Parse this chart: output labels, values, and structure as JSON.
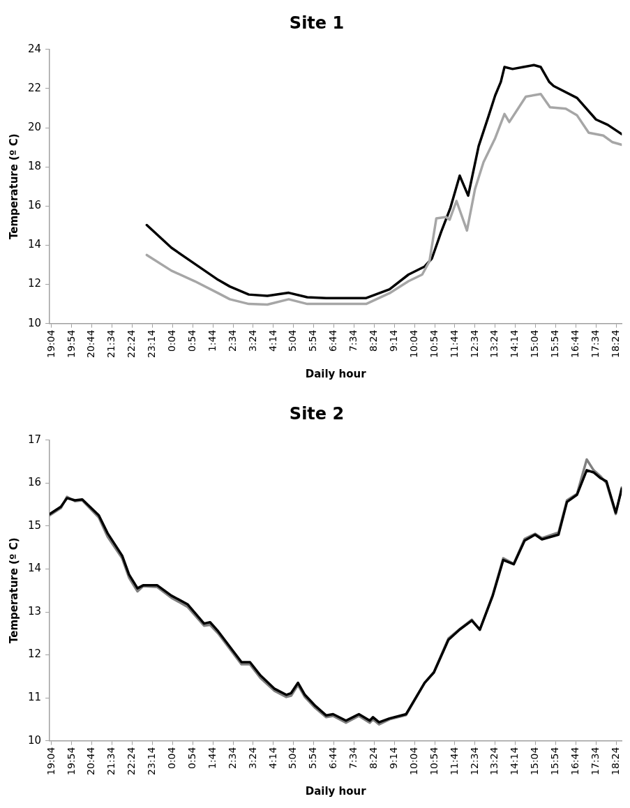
{
  "chart_data": [
    {
      "type": "line",
      "title": "Site 1",
      "xlabel": "Daily hour",
      "ylabel": "Temperature (º C)",
      "xlim": [
        "--01-01T18:59",
        "--01-02T18:38"
      ],
      "ylim": [
        10,
        24
      ],
      "yticks": [
        10,
        12,
        14,
        16,
        18,
        20,
        22,
        24
      ],
      "xticks": [
        {
          "value": "--01-01T19:04",
          "label": "19:04"
        },
        {
          "value": "--01-01T19:54",
          "label": "19:54"
        },
        {
          "value": "--01-01T20:44",
          "label": "20:44"
        },
        {
          "value": "--01-01T21:34",
          "label": "21:34"
        },
        {
          "value": "--01-01T22:24",
          "label": "22:24"
        },
        {
          "value": "--01-01T23:14",
          "label": "23:14"
        },
        {
          "value": "--01-02T00:04",
          "label": "0:04"
        },
        {
          "value": "--01-02T00:54",
          "label": "0:54"
        },
        {
          "value": "--01-02T01:44",
          "label": "1:44"
        },
        {
          "value": "--01-02T02:34",
          "label": "2:34"
        },
        {
          "value": "--01-02T03:24",
          "label": "3:24"
        },
        {
          "value": "--01-02T04:14",
          "label": "4:14"
        },
        {
          "value": "--01-02T05:04",
          "label": "5:04"
        },
        {
          "value": "--01-02T05:54",
          "label": "5:54"
        },
        {
          "value": "--01-02T06:44",
          "label": "6:44"
        },
        {
          "value": "--01-02T07:34",
          "label": "7:34"
        },
        {
          "value": "--01-02T08:24",
          "label": "8:24"
        },
        {
          "value": "--01-02T09:14",
          "label": "9:14"
        },
        {
          "value": "--01-02T10:04",
          "label": "10:04"
        },
        {
          "value": "--01-02T10:54",
          "label": "10:54"
        },
        {
          "value": "--01-02T11:44",
          "label": "11:44"
        },
        {
          "value": "--01-02T12:34",
          "label": "12:34"
        },
        {
          "value": "--01-02T13:24",
          "label": "13:24"
        },
        {
          "value": "--01-02T14:14",
          "label": "14:14"
        },
        {
          "value": "--01-02T15:04",
          "label": "15:04"
        },
        {
          "value": "--01-02T15:54",
          "label": "15:54"
        },
        {
          "value": "--01-02T16:44",
          "label": "16:44"
        },
        {
          "value": "--01-02T17:34",
          "label": "17:34"
        },
        {
          "value": "--01-02T18:24",
          "label": "18:24"
        }
      ],
      "grid": false,
      "legend": false,
      "marker": "none",
      "line_style": "solid",
      "series": [
        {
          "color": "#a6a6a6",
          "x": [
            "--01-01T23:00",
            "--01-02T00:01",
            "--01-02T00:59",
            "--01-02T01:57",
            "--01-02T02:26",
            "--01-02T03:13",
            "--01-02T03:59",
            "--01-02T04:52",
            "--01-02T05:38",
            "--01-02T06:25",
            "--01-02T08:04",
            "--01-02T09:02",
            "--01-02T09:49",
            "--01-02T10:23",
            "--01-02T10:41",
            "--01-02T10:58",
            "--01-02T11:22",
            "--01-02T11:31",
            "--01-02T11:48",
            "--01-02T12:14",
            "--01-02T12:34",
            "--01-02T12:55",
            "--01-02T13:24",
            "--01-02T13:47",
            "--01-02T13:59",
            "--01-02T14:40",
            "--01-02T15:17",
            "--01-02T15:40",
            "--01-02T16:19",
            "--01-02T16:47",
            "--01-02T17:16",
            "--01-02T17:52",
            "--01-02T18:15",
            "--01-02T18:38"
          ],
          "values": [
            13.5,
            12.7,
            12.16,
            11.55,
            11.24,
            11.0,
            10.97,
            11.24,
            11.0,
            11.0,
            11.0,
            11.55,
            12.16,
            12.5,
            13.18,
            15.37,
            15.44,
            15.3,
            16.26,
            14.75,
            16.87,
            18.24,
            19.47,
            20.7,
            20.29,
            21.59,
            21.72,
            21.04,
            20.97,
            20.63,
            19.74,
            19.6,
            19.26,
            19.13
          ]
        },
        {
          "color": "#000000",
          "x": [
            "--01-01T23:00",
            "--01-02T00:01",
            "--01-02T00:59",
            "--01-02T01:57",
            "--01-02T02:26",
            "--01-02T03:13",
            "--01-02T03:59",
            "--01-02T04:52",
            "--01-02T05:38",
            "--01-02T06:25",
            "--01-02T08:04",
            "--01-02T09:02",
            "--01-02T09:49",
            "--01-02T10:29",
            "--01-02T10:47",
            "--01-02T11:10",
            "--01-02T11:33",
            "--01-02T11:56",
            "--01-02T12:17",
            "--01-02T12:43",
            "--01-02T13:07",
            "--01-02T13:24",
            "--01-02T13:38",
            "--01-02T13:47",
            "--01-02T14:07",
            "--01-02T14:34",
            "--01-02T15:00",
            "--01-02T15:17",
            "--01-02T15:38",
            "--01-02T15:49",
            "--01-02T16:47",
            "--01-02T17:34",
            "--01-02T18:03",
            "--01-02T18:38"
          ],
          "values": [
            15.03,
            13.87,
            13.05,
            12.23,
            11.89,
            11.48,
            11.41,
            11.57,
            11.34,
            11.3,
            11.3,
            11.75,
            12.5,
            12.91,
            13.32,
            14.68,
            15.91,
            17.55,
            16.53,
            19.06,
            20.56,
            21.65,
            22.34,
            23.1,
            23.0,
            23.1,
            23.2,
            23.1,
            22.34,
            22.13,
            21.52,
            20.42,
            20.15,
            19.67
          ]
        }
      ]
    },
    {
      "type": "line",
      "title": "Site 2",
      "xlabel": "Daily hour",
      "ylabel": "Temperature (º C)",
      "xlim": [
        "--01-01T18:59",
        "--01-02T18:38"
      ],
      "ylim": [
        10,
        17
      ],
      "yticks": [
        10,
        11,
        12,
        13,
        14,
        15,
        16,
        17
      ],
      "xticks": [
        {
          "value": "--01-01T19:04",
          "label": "19:04"
        },
        {
          "value": "--01-01T19:54",
          "label": "19:54"
        },
        {
          "value": "--01-01T20:44",
          "label": "20:44"
        },
        {
          "value": "--01-01T21:34",
          "label": "21:34"
        },
        {
          "value": "--01-01T22:24",
          "label": "22:24"
        },
        {
          "value": "--01-01T23:14",
          "label": "23:14"
        },
        {
          "value": "--01-02T00:04",
          "label": "0:04"
        },
        {
          "value": "--01-02T00:54",
          "label": "0:54"
        },
        {
          "value": "--01-02T01:44",
          "label": "1:44"
        },
        {
          "value": "--01-02T02:34",
          "label": "2:34"
        },
        {
          "value": "--01-02T03:24",
          "label": "3:24"
        },
        {
          "value": "--01-02T04:14",
          "label": "4:14"
        },
        {
          "value": "--01-02T05:04",
          "label": "5:04"
        },
        {
          "value": "--01-02T05:54",
          "label": "5:54"
        },
        {
          "value": "--01-02T06:44",
          "label": "6:44"
        },
        {
          "value": "--01-02T07:34",
          "label": "7:34"
        },
        {
          "value": "--01-02T08:24",
          "label": "8:24"
        },
        {
          "value": "--01-02T09:14",
          "label": "9:14"
        },
        {
          "value": "--01-02T10:04",
          "label": "10:04"
        },
        {
          "value": "--01-02T10:54",
          "label": "10:54"
        },
        {
          "value": "--01-02T11:44",
          "label": "11:44"
        },
        {
          "value": "--01-02T12:34",
          "label": "12:34"
        },
        {
          "value": "--01-02T13:24",
          "label": "13:24"
        },
        {
          "value": "--01-02T14:14",
          "label": "14:14"
        },
        {
          "value": "--01-02T15:04",
          "label": "15:04"
        },
        {
          "value": "--01-02T15:54",
          "label": "15:54"
        },
        {
          "value": "--01-02T16:44",
          "label": "16:44"
        },
        {
          "value": "--01-02T17:34",
          "label": "17:34"
        },
        {
          "value": "--01-02T18:24",
          "label": "18:24"
        }
      ],
      "grid": false,
      "legend": false,
      "marker": "none",
      "line_style": "solid",
      "x": [
        "--01-01T18:59",
        "--01-01T19:27",
        "--01-01T19:42",
        "--01-01T20:02",
        "--01-01T20:20",
        "--01-01T21:01",
        "--01-01T21:23",
        "--01-01T21:59",
        "--01-01T22:16",
        "--01-01T22:37",
        "--01-01T22:51",
        "--01-01T23:26",
        "--01-02T00:01",
        "--01-02T00:41",
        "--01-02T01:22",
        "--01-02T01:37",
        "--01-02T01:57",
        "--01-02T02:55",
        "--01-02T03:16",
        "--01-02T03:42",
        "--01-02T04:17",
        "--01-02T04:46",
        "--01-02T04:58",
        "--01-02T05:15",
        "--01-02T05:32",
        "--01-02T05:56",
        "--01-02T06:25",
        "--01-02T06:42",
        "--01-02T07:14",
        "--01-02T07:46",
        "--01-02T08:13",
        "--01-02T08:21",
        "--01-02T08:36",
        "--01-02T09:02",
        "--01-02T09:43",
        "--01-02T10:29",
        "--01-02T10:52",
        "--01-02T11:28",
        "--01-02T11:56",
        "--01-02T12:26",
        "--01-02T12:46",
        "--01-02T13:18",
        "--01-02T13:44",
        "--01-02T14:10",
        "--01-02T14:37",
        "--01-02T15:03",
        "--01-02T15:20",
        "--01-02T16:01",
        "--01-02T16:22",
        "--01-02T16:47",
        "--01-02T17:11",
        "--01-02T17:28",
        "--01-02T17:46",
        "--01-02T18:00",
        "--01-02T18:23",
        "--01-02T18:38"
      ],
      "series": [
        {
          "color": "#000000",
          "values": [
            15.28,
            15.45,
            15.65,
            15.6,
            15.62,
            15.25,
            14.83,
            14.31,
            13.87,
            13.55,
            13.62,
            13.62,
            13.38,
            13.18,
            12.73,
            12.76,
            12.55,
            11.83,
            11.83,
            11.52,
            11.21,
            11.07,
            11.11,
            11.35,
            11.07,
            10.83,
            10.59,
            10.62,
            10.47,
            10.62,
            10.47,
            10.55,
            10.43,
            10.52,
            10.62,
            11.35,
            11.59,
            12.35,
            12.59,
            12.8,
            12.59,
            13.38,
            14.21,
            14.11,
            14.66,
            14.8,
            14.69,
            14.8,
            15.56,
            15.73,
            16.3,
            16.25,
            16.11,
            16.04,
            15.31,
            15.87
          ]
        },
        {
          "color": "#808080",
          "values": [
            15.25,
            15.42,
            15.68,
            15.58,
            15.6,
            15.2,
            14.75,
            14.25,
            13.8,
            13.48,
            13.6,
            13.58,
            13.33,
            13.12,
            12.68,
            12.7,
            12.5,
            11.78,
            11.78,
            11.46,
            11.16,
            11.02,
            11.05,
            11.3,
            11.02,
            10.78,
            10.55,
            10.58,
            10.42,
            10.58,
            10.42,
            10.5,
            10.38,
            10.5,
            10.6,
            11.35,
            11.6,
            12.38,
            12.6,
            12.82,
            12.58,
            13.4,
            14.25,
            14.12,
            14.7,
            14.82,
            14.72,
            14.85,
            15.6,
            15.75,
            16.55,
            16.3,
            16.15,
            16.0,
            15.28,
            15.9
          ]
        }
      ]
    }
  ]
}
